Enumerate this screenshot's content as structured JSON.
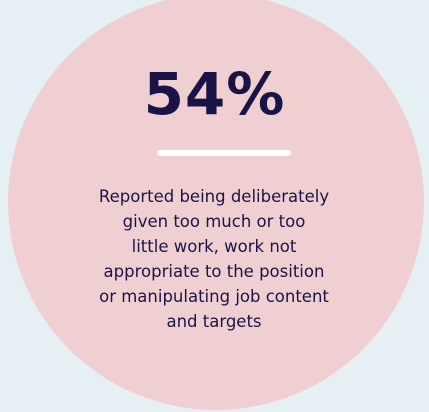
{
  "stat": {
    "value": "54%",
    "description_lines": [
      "Reported being deliberately",
      "given too much or too",
      "little work, work not",
      "appropriate to the position",
      "or manipulating job content",
      "and targets"
    ]
  },
  "colors": {
    "background": "#e6f0f4",
    "circle": "#f0cfd3",
    "text": "#1a1446",
    "divider": "#ffffff"
  }
}
